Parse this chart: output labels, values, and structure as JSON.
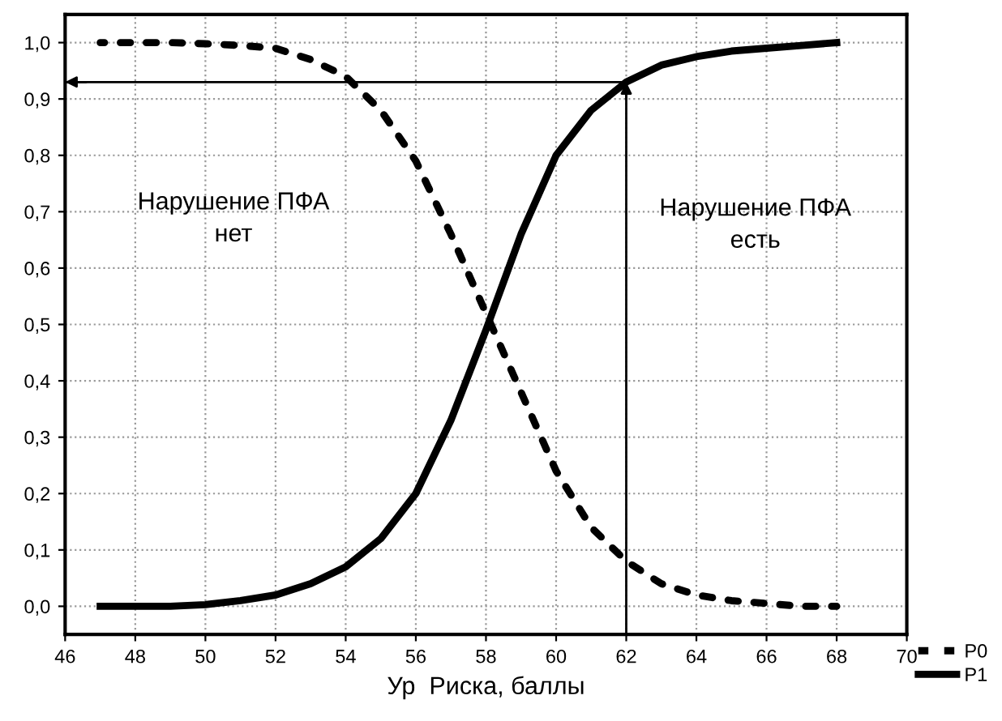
{
  "chart_data": {
    "type": "line",
    "xlabel": "Ур  Риска, баллы",
    "x": [
      47,
      48,
      49,
      50,
      51,
      52,
      53,
      54,
      55,
      56,
      57,
      58,
      59,
      60,
      61,
      62,
      63,
      64,
      65,
      66,
      67,
      68
    ],
    "series": [
      {
        "name": "P0",
        "color": "#000000",
        "line_style": "dashed",
        "values": [
          1.0,
          1.0,
          1.0,
          0.998,
          0.995,
          0.99,
          0.97,
          0.94,
          0.88,
          0.79,
          0.66,
          0.52,
          0.38,
          0.24,
          0.14,
          0.08,
          0.04,
          0.02,
          0.01,
          0.005,
          0.0,
          0.0
        ]
      },
      {
        "name": "P1",
        "color": "#000000",
        "line_style": "solid",
        "values": [
          0.0,
          0.0,
          0.0,
          0.003,
          0.01,
          0.02,
          0.04,
          0.07,
          0.12,
          0.2,
          0.33,
          0.49,
          0.66,
          0.8,
          0.88,
          0.93,
          0.96,
          0.975,
          0.985,
          0.99,
          0.995,
          1.0
        ]
      }
    ],
    "xlim": [
      46,
      70
    ],
    "xticks": [
      46,
      48,
      50,
      52,
      54,
      56,
      58,
      60,
      62,
      64,
      66,
      68,
      70
    ],
    "ylim": [
      -0.05,
      1.05
    ],
    "yticks": [
      {
        "value": 0,
        "label": "0,0"
      },
      {
        "value": 0.1,
        "label": "0,1"
      },
      {
        "value": 0.2,
        "label": "0,2"
      },
      {
        "value": 0.3,
        "label": "0,3"
      },
      {
        "value": 0.4,
        "label": "0,4"
      },
      {
        "value": 0.5,
        "label": "0,5"
      },
      {
        "value": 0.6,
        "label": "0,6"
      },
      {
        "value": 0.7,
        "label": "0,7"
      },
      {
        "value": 0.8,
        "label": "0,8"
      },
      {
        "value": 0.9,
        "label": "0,9"
      },
      {
        "value": 1.0,
        "label": "1,0"
      }
    ],
    "ref_lines": [
      {
        "axis": "x",
        "value": 62,
        "color": "#000000"
      },
      {
        "axis": "y",
        "value": 0.93,
        "color": "#000000"
      }
    ],
    "annotations": [
      "Нарушение ПФА\nнет",
      "Нарушение ПФА\nесть"
    ],
    "grid": true,
    "legend": "bottom right",
    "marker": "none"
  }
}
